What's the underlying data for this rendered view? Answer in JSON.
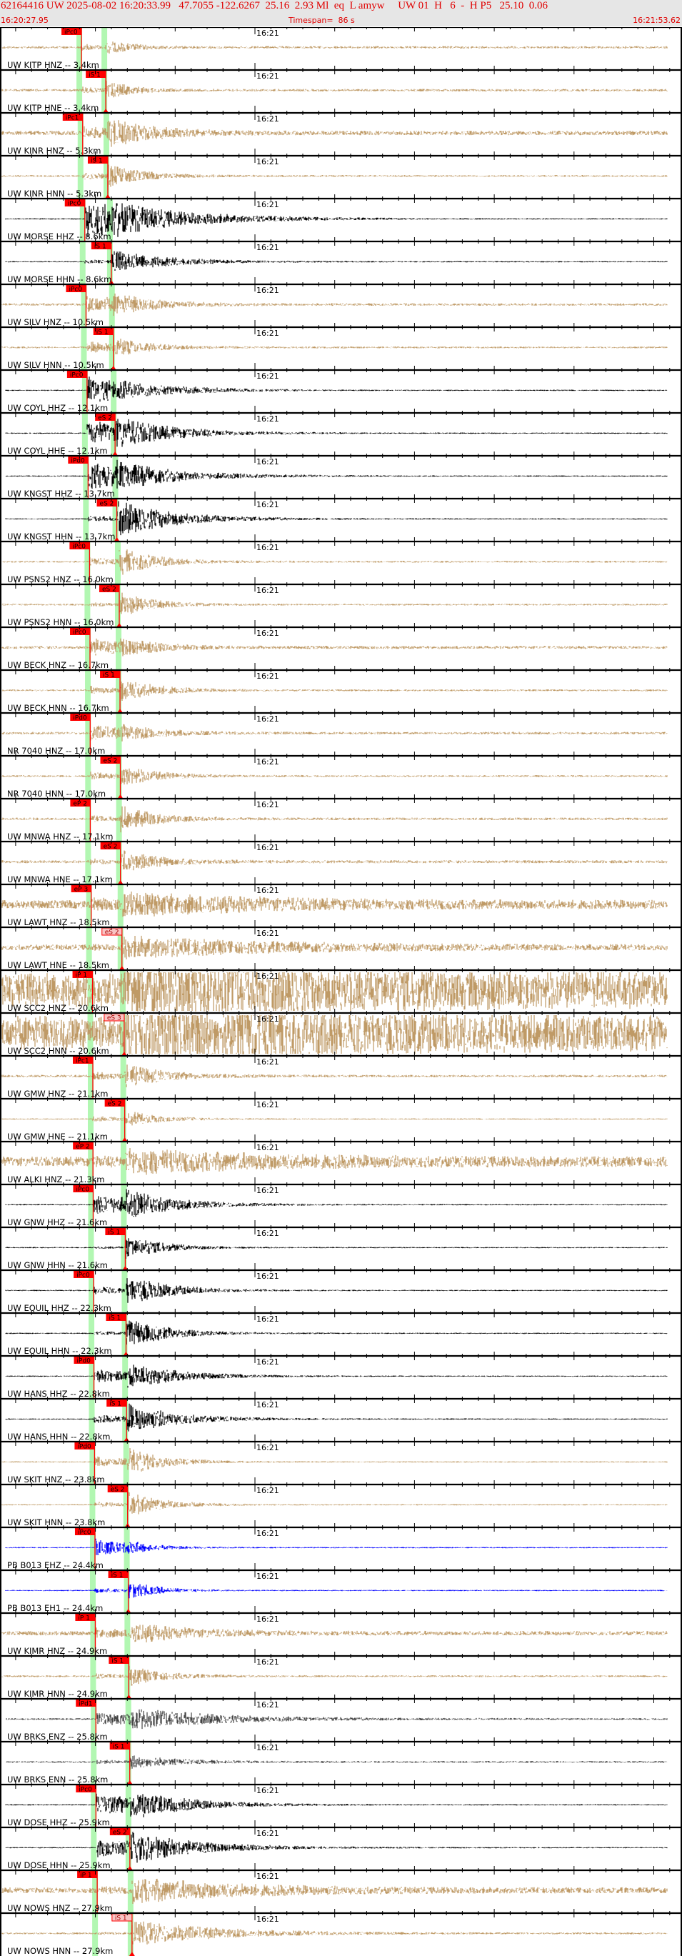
{
  "header": {
    "event_line": "62164416 UW 2025-08-02 16:20:33.99   47.7055 -122.6267  25.16  2.93 Ml  eq  L amyw     UW 01  H   6  -  H P5   25.10  0.06",
    "start_time": "16:20:27.95",
    "timespan": "Timespan=  86 s",
    "end_time": "16:21:53.62"
  },
  "axis": {
    "major_label": "16:21",
    "seconds_span": 86
  },
  "colors": {
    "header_text": "#e00000",
    "pick": "#ff0000",
    "pick_pale": "#f8c4c4",
    "phase_band": "#b2f7b2",
    "tan": "#bf9a66",
    "black": "#000000",
    "blue": "#0000ff",
    "gray": "#444444"
  },
  "panels": [
    {
      "label": "UW KITP HNZ -- 3.4km",
      "distance_km": 3.4,
      "color": "tan",
      "pick": {
        "label": "iPc0",
        "phase": "P",
        "pale": false
      }
    },
    {
      "label": "UW KITP HNE -- 3.4km",
      "distance_km": 3.4,
      "color": "tan",
      "pick": {
        "label": "iS 1",
        "phase": "S",
        "pale": false
      }
    },
    {
      "label": "UW KINR HNZ -- 5.3km",
      "distance_km": 5.3,
      "color": "tan",
      "pick": {
        "label": "iPc1",
        "phase": "P",
        "pale": false
      }
    },
    {
      "label": "UW KINR HNN -- 5.3km",
      "distance_km": 5.3,
      "color": "tan",
      "pick": {
        "label": "iS 1",
        "phase": "S",
        "pale": false
      }
    },
    {
      "label": "UW MORSE HHZ -- 8.6km",
      "distance_km": 8.6,
      "color": "black",
      "pick": {
        "label": "iPc0",
        "phase": "P",
        "pale": false
      }
    },
    {
      "label": "UW MORSE HHN -- 8.6km",
      "distance_km": 8.6,
      "color": "black",
      "pick": {
        "label": "iS 1",
        "phase": "S",
        "pale": false
      }
    },
    {
      "label": "UW SILV HNZ -- 10.5km",
      "distance_km": 10.5,
      "color": "tan",
      "pick": {
        "label": "iPc0",
        "phase": "P",
        "pale": false
      }
    },
    {
      "label": "UW SILV HNN -- 10.5km",
      "distance_km": 10.5,
      "color": "tan",
      "pick": {
        "label": "iS 1",
        "phase": "S",
        "pale": false
      }
    },
    {
      "label": "UW COYL HHZ -- 12.1km",
      "distance_km": 12.1,
      "color": "black",
      "pick": {
        "label": "iPc0",
        "phase": "P",
        "pale": false
      }
    },
    {
      "label": "UW COYL HHE -- 12.1km",
      "distance_km": 12.1,
      "color": "black",
      "pick": {
        "label": "eS 2",
        "phase": "S",
        "pale": false
      }
    },
    {
      "label": "UW KNGST HHZ -- 13.7km",
      "distance_km": 13.7,
      "color": "black",
      "pick": {
        "label": "iPd0",
        "phase": "P",
        "pale": false
      }
    },
    {
      "label": "UW KNGST HHN -- 13.7km",
      "distance_km": 13.7,
      "color": "black",
      "pick": {
        "label": "eS 2",
        "phase": "S",
        "pale": false
      }
    },
    {
      "label": "UW PSNS2 HNZ -- 16.0km",
      "distance_km": 16.0,
      "color": "tan",
      "pick": {
        "label": "iPc0",
        "phase": "P",
        "pale": false
      }
    },
    {
      "label": "UW PSNS2 HNN -- 16.0km",
      "distance_km": 16.0,
      "color": "tan",
      "pick": {
        "label": "eS 2",
        "phase": "S",
        "pale": false
      }
    },
    {
      "label": "UW BECK HNZ -- 16.7km",
      "distance_km": 16.7,
      "color": "tan",
      "pick": {
        "label": "iPc0",
        "phase": "P",
        "pale": false
      }
    },
    {
      "label": "UW BECK HNN -- 16.7km",
      "distance_km": 16.7,
      "color": "tan",
      "pick": {
        "label": "iS 1",
        "phase": "S",
        "pale": false
      }
    },
    {
      "label": "NR 7040 HNZ -- 17.0km",
      "distance_km": 17.0,
      "color": "tan",
      "pick": {
        "label": "iPd0",
        "phase": "P",
        "pale": false
      }
    },
    {
      "label": "NR 7040 HNN -- 17.0km",
      "distance_km": 17.0,
      "color": "tan",
      "pick": {
        "label": "eS 2",
        "phase": "S",
        "pale": false
      }
    },
    {
      "label": "UW MNWA HNZ -- 17.1km",
      "distance_km": 17.1,
      "color": "tan",
      "pick": {
        "label": "eP 2",
        "phase": "P",
        "pale": false
      }
    },
    {
      "label": "UW MNWA HNE -- 17.1km",
      "distance_km": 17.1,
      "color": "tan",
      "pick": {
        "label": "eS 2",
        "phase": "S",
        "pale": false
      }
    },
    {
      "label": "UW LAWT HNZ -- 18.5km",
      "distance_km": 18.5,
      "color": "tan",
      "pick": {
        "label": "eP 3",
        "phase": "P",
        "pale": false
      }
    },
    {
      "label": "UW LAWT HNE -- 18.5km",
      "distance_km": 18.5,
      "color": "tan",
      "pick": {
        "label": "eS 2",
        "phase": "S",
        "pale": true
      }
    },
    {
      "label": "UW SCC2 HNZ -- 20.6km",
      "distance_km": 20.6,
      "color": "tan",
      "pick": {
        "label": "iP 1",
        "phase": "P",
        "pale": false
      }
    },
    {
      "label": "UW SCC2 HNN -- 20.6km",
      "distance_km": 20.6,
      "color": "tan",
      "pick": {
        "label": "eS 3",
        "phase": "S",
        "pale": true
      }
    },
    {
      "label": "UW GMW HNZ -- 21.1km",
      "distance_km": 21.1,
      "color": "tan",
      "pick": {
        "label": "iPc1",
        "phase": "P",
        "pale": false
      }
    },
    {
      "label": "UW GMW HNE -- 21.1km",
      "distance_km": 21.1,
      "color": "tan",
      "pick": {
        "label": "eS 2",
        "phase": "S",
        "pale": false
      }
    },
    {
      "label": "UW ALKI HNZ -- 21.3km",
      "distance_km": 21.3,
      "color": "tan",
      "pick": {
        "label": "eP 2",
        "phase": "P",
        "pale": false
      }
    },
    {
      "label": "UW GNW HHZ -- 21.6km",
      "distance_km": 21.6,
      "color": "black",
      "pick": {
        "label": "iPc0",
        "phase": "P",
        "pale": false
      }
    },
    {
      "label": "UW GNW HHN -- 21.6km",
      "distance_km": 21.6,
      "color": "black",
      "pick": {
        "label": "iS 1",
        "phase": "S",
        "pale": false
      }
    },
    {
      "label": "UW EQUIL HHZ -- 22.3km",
      "distance_km": 22.3,
      "color": "black",
      "pick": {
        "label": "iPc0",
        "phase": "P",
        "pale": false
      }
    },
    {
      "label": "UW EQUIL HHN -- 22.3km",
      "distance_km": 22.3,
      "color": "black",
      "pick": {
        "label": "iS 1",
        "phase": "S",
        "pale": false
      }
    },
    {
      "label": "UW HANS HHZ -- 22.8km",
      "distance_km": 22.8,
      "color": "black",
      "pick": {
        "label": "iPd0",
        "phase": "P",
        "pale": false
      }
    },
    {
      "label": "UW HANS HHN -- 22.8km",
      "distance_km": 22.8,
      "color": "black",
      "pick": {
        "label": "iS 1",
        "phase": "S",
        "pale": false
      }
    },
    {
      "label": "UW SKIT HNZ -- 23.8km",
      "distance_km": 23.8,
      "color": "tan",
      "pick": {
        "label": "iPd0",
        "phase": "P",
        "pale": false
      }
    },
    {
      "label": "UW SKIT HNN -- 23.8km",
      "distance_km": 23.8,
      "color": "tan",
      "pick": {
        "label": "eS 2",
        "phase": "S",
        "pale": false
      }
    },
    {
      "label": "PB B013 EHZ -- 24.4km",
      "distance_km": 24.4,
      "color": "blue",
      "pick": {
        "label": "iPc0",
        "phase": "P",
        "pale": false
      }
    },
    {
      "label": "PB B013 EH1 -- 24.4km",
      "distance_km": 24.4,
      "color": "blue",
      "pick": {
        "label": "iS 1",
        "phase": "S",
        "pale": false
      }
    },
    {
      "label": "UW KIMR HNZ -- 24.9km",
      "distance_km": 24.9,
      "color": "tan",
      "pick": {
        "label": "iP 1",
        "phase": "P",
        "pale": false
      }
    },
    {
      "label": "UW KIMR HNN -- 24.9km",
      "distance_km": 24.9,
      "color": "tan",
      "pick": {
        "label": "iS 1",
        "phase": "S",
        "pale": false
      }
    },
    {
      "label": "UW BRKS ENZ -- 25.8km",
      "distance_km": 25.8,
      "color": "gray",
      "pick": {
        "label": "iPd1",
        "phase": "P",
        "pale": false
      }
    },
    {
      "label": "UW BRKS ENN -- 25.8km",
      "distance_km": 25.8,
      "color": "gray",
      "pick": {
        "label": "iS 1",
        "phase": "S",
        "pale": false
      }
    },
    {
      "label": "UW DOSE HHZ -- 25.9km",
      "distance_km": 25.9,
      "color": "black",
      "pick": {
        "label": "iPc0",
        "phase": "P",
        "pale": false
      }
    },
    {
      "label": "UW DOSE HHN -- 25.9km",
      "distance_km": 25.9,
      "color": "black",
      "pick": {
        "label": "eS 2",
        "phase": "S",
        "pale": false
      }
    },
    {
      "label": "UW NOWS HNZ -- 27.9km",
      "distance_km": 27.9,
      "color": "tan",
      "pick": {
        "label": "iP 1",
        "phase": "P",
        "pale": false
      }
    },
    {
      "label": "UW NOWS HNN -- 27.9km",
      "distance_km": 27.9,
      "color": "tan",
      "pick": {
        "label": "iS 1",
        "phase": "S",
        "pale": true
      }
    }
  ]
}
